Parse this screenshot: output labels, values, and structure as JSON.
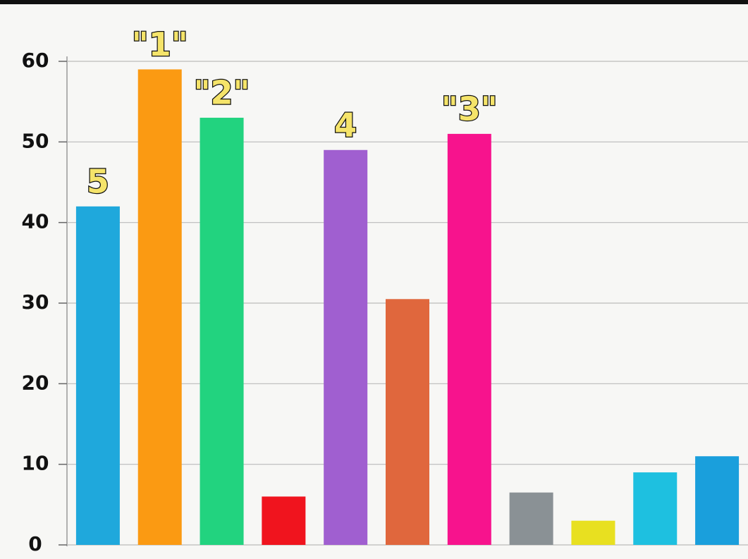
{
  "chart_data": {
    "type": "bar",
    "categories": [
      null,
      null,
      null,
      null,
      null,
      null,
      null,
      null,
      null,
      null,
      null
    ],
    "values": [
      42,
      59,
      53,
      6,
      49,
      30.5,
      51,
      6.5,
      3,
      9,
      11
    ],
    "colors": [
      "#1fa8dc",
      "#fb9a12",
      "#22d37f",
      "#f0141e",
      "#a05fd0",
      "#e0673d",
      "#f7138d",
      "#8a9195",
      "#e8e020",
      "#1ec0e0",
      "#1a9fdc"
    ],
    "rank_labels": [
      "5",
      "\"1\"",
      "\"2\"",
      null,
      "4",
      null,
      "\"3\"",
      null,
      null,
      null,
      null
    ],
    "ylim": [
      0,
      60
    ],
    "yticks": [
      0,
      10,
      20,
      30,
      40,
      50,
      60
    ],
    "grid": true
  }
}
